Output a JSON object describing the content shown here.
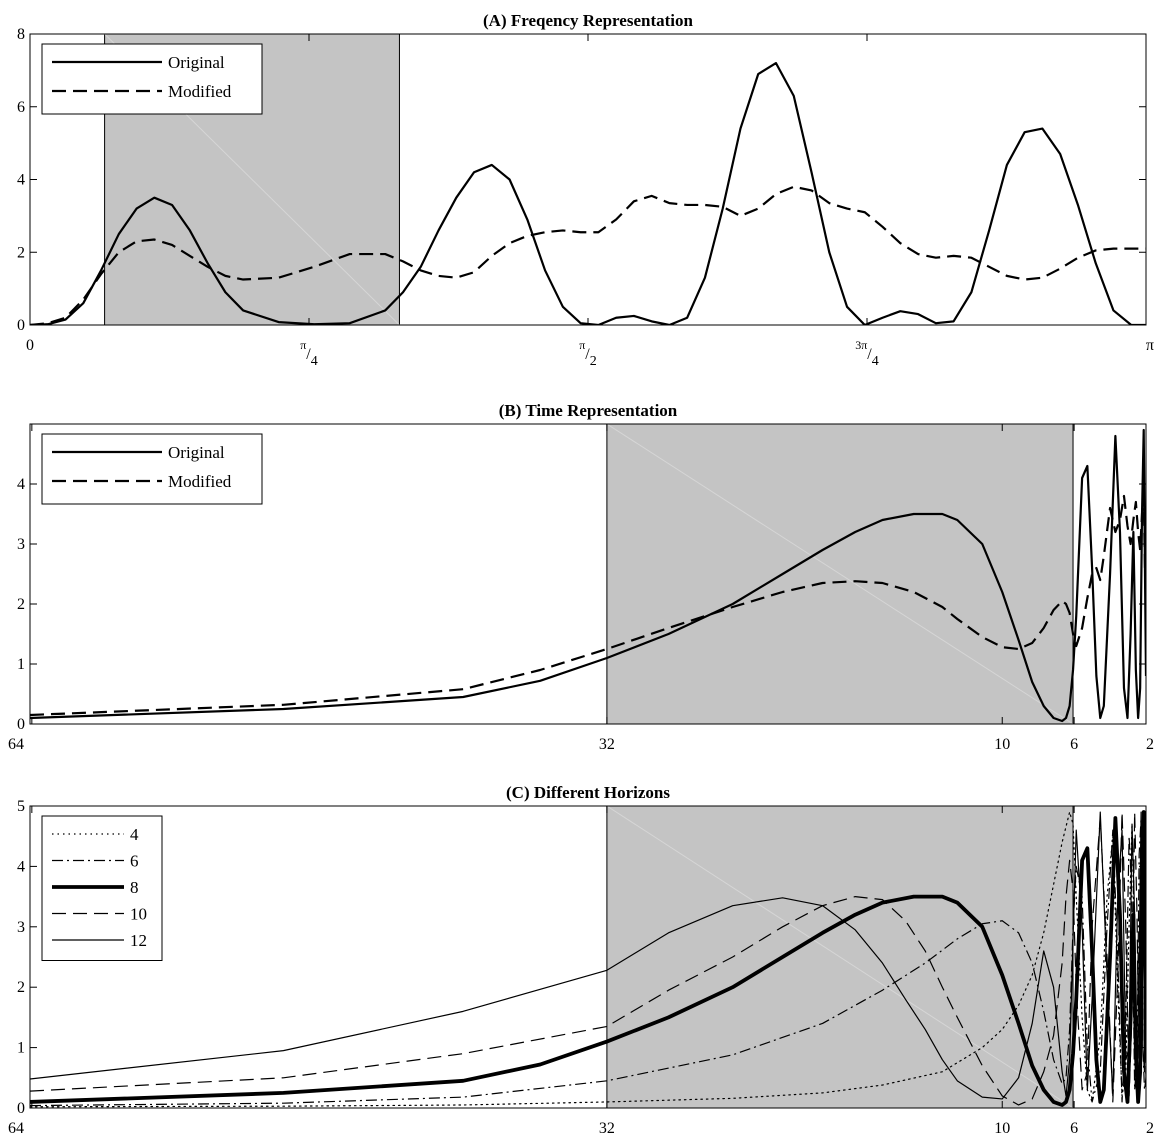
{
  "chart_data": [
    {
      "type": "line",
      "title": "(A) Freqency Representation",
      "xlim": [
        0,
        3.14159
      ],
      "ylim": [
        0,
        8
      ],
      "yticks": [
        "0",
        "2",
        "4",
        "6",
        "8"
      ],
      "xticks": [
        {
          "value": 0,
          "label": "0"
        },
        {
          "value": 0.7854,
          "num": "π",
          "den": "4"
        },
        {
          "value": 1.5708,
          "num": "π",
          "den": "2"
        },
        {
          "value": 2.3562,
          "num": "3π",
          "den": "4"
        },
        {
          "value": 3.14159,
          "label": "π"
        }
      ],
      "shaded": [
        0.21,
        1.04
      ],
      "legend": {
        "position": "top-left",
        "entries": [
          "Original",
          "Modified"
        ]
      },
      "series": [
        {
          "name": "Original",
          "style": "solid",
          "width": 2.2,
          "x": [
            0,
            0.05,
            0.1,
            0.15,
            0.2,
            0.25,
            0.3,
            0.35,
            0.4,
            0.45,
            0.5,
            0.55,
            0.6,
            0.7,
            0.8,
            0.9,
            1.0,
            1.05,
            1.1,
            1.15,
            1.2,
            1.25,
            1.3,
            1.35,
            1.4,
            1.45,
            1.5,
            1.55,
            1.6,
            1.65,
            1.7,
            1.75,
            1.8,
            1.85,
            1.9,
            1.95,
            2.0,
            2.05,
            2.1,
            2.15,
            2.2,
            2.25,
            2.3,
            2.35,
            2.4,
            2.45,
            2.5,
            2.55,
            2.6,
            2.65,
            2.7,
            2.75,
            2.8,
            2.85,
            2.9,
            2.95,
            3.0,
            3.05,
            3.1,
            3.14
          ],
          "y": [
            0,
            0.02,
            0.15,
            0.6,
            1.5,
            2.5,
            3.2,
            3.5,
            3.3,
            2.6,
            1.7,
            0.9,
            0.4,
            0.08,
            0.02,
            0.05,
            0.4,
            0.9,
            1.6,
            2.6,
            3.5,
            4.2,
            4.4,
            4.0,
            2.9,
            1.5,
            0.5,
            0.05,
            0,
            0.2,
            0.25,
            0.1,
            0,
            0.2,
            1.3,
            3.2,
            5.4,
            6.9,
            7.2,
            6.3,
            4.2,
            2.0,
            0.5,
            0,
            0.2,
            0.38,
            0.3,
            0.05,
            0.1,
            0.9,
            2.6,
            4.4,
            5.3,
            5.4,
            4.7,
            3.3,
            1.7,
            0.4,
            0,
            0
          ]
        },
        {
          "name": "Modified",
          "style": "dashed",
          "width": 2.2,
          "x": [
            0,
            0.05,
            0.1,
            0.15,
            0.2,
            0.25,
            0.3,
            0.35,
            0.4,
            0.45,
            0.5,
            0.55,
            0.6,
            0.7,
            0.8,
            0.9,
            1.0,
            1.05,
            1.1,
            1.15,
            1.2,
            1.25,
            1.3,
            1.35,
            1.4,
            1.45,
            1.5,
            1.55,
            1.6,
            1.65,
            1.7,
            1.75,
            1.8,
            1.85,
            1.9,
            1.95,
            2.0,
            2.05,
            2.1,
            2.15,
            2.2,
            2.25,
            2.3,
            2.35,
            2.4,
            2.45,
            2.5,
            2.55,
            2.6,
            2.65,
            2.7,
            2.75,
            2.8,
            2.85,
            2.9,
            2.95,
            3.0,
            3.05,
            3.1,
            3.14
          ],
          "y": [
            0,
            0.05,
            0.2,
            0.7,
            1.4,
            2.0,
            2.3,
            2.35,
            2.2,
            1.9,
            1.6,
            1.35,
            1.25,
            1.3,
            1.6,
            1.95,
            1.95,
            1.75,
            1.5,
            1.35,
            1.3,
            1.45,
            1.9,
            2.25,
            2.45,
            2.55,
            2.6,
            2.55,
            2.55,
            2.9,
            3.4,
            3.55,
            3.35,
            3.3,
            3.3,
            3.25,
            3.0,
            3.2,
            3.6,
            3.8,
            3.7,
            3.35,
            3.2,
            3.1,
            2.7,
            2.25,
            1.95,
            1.85,
            1.9,
            1.85,
            1.6,
            1.35,
            1.25,
            1.3,
            1.55,
            1.85,
            2.05,
            2.1,
            2.1,
            2.1
          ]
        }
      ]
    },
    {
      "type": "line",
      "title": "(B) Time Representation",
      "xlim": [
        0.0156,
        0.5
      ],
      "xscale": "reciprocal",
      "ylim": [
        0,
        5
      ],
      "yticks": [
        "0",
        "1",
        "2",
        "3",
        "4"
      ],
      "xticks": [
        {
          "value": 0.015625,
          "label": "64"
        },
        {
          "value": 0.03125,
          "label": "32"
        },
        {
          "value": 0.1,
          "label": "10"
        },
        {
          "value": 0.16667,
          "label": "6"
        },
        {
          "value": 0.5,
          "label": "2"
        }
      ],
      "shaded": [
        0.03125,
        0.165
      ],
      "legend": {
        "position": "top-left",
        "entries": [
          "Original",
          "Modified"
        ]
      },
      "series": [
        {
          "name": "Original",
          "style": "solid",
          "width": 2.2,
          "x": [
            0.0156,
            0.02,
            0.025,
            0.028,
            0.03125,
            0.035,
            0.04,
            0.045,
            0.05,
            0.055,
            0.06,
            0.067,
            0.075,
            0.08,
            0.09,
            0.1,
            0.11,
            0.12,
            0.13,
            0.14,
            0.15,
            0.155,
            0.16,
            0.165,
            0.17,
            0.18,
            0.19,
            0.2,
            0.21,
            0.22,
            0.23,
            0.25,
            0.27,
            0.29,
            0.31,
            0.33,
            0.35,
            0.37,
            0.39,
            0.41,
            0.43,
            0.45,
            0.47,
            0.49,
            0.5
          ],
          "y": [
            0.1,
            0.25,
            0.45,
            0.72,
            1.1,
            1.5,
            2.0,
            2.5,
            2.9,
            3.2,
            3.4,
            3.5,
            3.5,
            3.4,
            3.0,
            2.2,
            1.4,
            0.7,
            0.3,
            0.1,
            0.05,
            0.1,
            0.3,
            0.9,
            1.8,
            4.1,
            4.3,
            2.6,
            0.8,
            0.1,
            0.3,
            2.5,
            4.8,
            3.2,
            0.6,
            0.1,
            1.5,
            3.2,
            0.9,
            0.1,
            0.6,
            3.5,
            4.9,
            2.0,
            0.8
          ]
        },
        {
          "name": "Modified",
          "style": "dashed",
          "width": 2.2,
          "x": [
            0.0156,
            0.02,
            0.025,
            0.028,
            0.03125,
            0.035,
            0.04,
            0.045,
            0.05,
            0.055,
            0.06,
            0.067,
            0.075,
            0.08,
            0.09,
            0.1,
            0.11,
            0.12,
            0.13,
            0.14,
            0.15,
            0.155,
            0.16,
            0.165,
            0.17,
            0.18,
            0.19,
            0.2,
            0.21,
            0.22,
            0.23,
            0.25,
            0.27,
            0.29,
            0.31,
            0.33,
            0.35,
            0.37,
            0.39,
            0.41,
            0.43,
            0.45,
            0.47,
            0.49,
            0.5
          ],
          "y": [
            0.15,
            0.32,
            0.58,
            0.9,
            1.25,
            1.6,
            1.95,
            2.2,
            2.35,
            2.38,
            2.35,
            2.2,
            1.95,
            1.75,
            1.45,
            1.28,
            1.25,
            1.35,
            1.6,
            1.9,
            2.05,
            2.0,
            1.85,
            1.5,
            1.3,
            1.6,
            2.1,
            2.5,
            2.6,
            2.4,
            2.8,
            3.6,
            3.2,
            3.4,
            3.8,
            3.3,
            3.0,
            3.4,
            3.7,
            3.2,
            2.9,
            3.5,
            3.8,
            2.3,
            2.0
          ]
        }
      ]
    },
    {
      "type": "line",
      "title": "(C) Different Horizons",
      "xlim": [
        0.0156,
        0.5
      ],
      "xscale": "reciprocal",
      "ylim": [
        0,
        5
      ],
      "yticks": [
        "0",
        "1",
        "2",
        "3",
        "4",
        "5"
      ],
      "xticks": [
        {
          "value": 0.015625,
          "label": "64"
        },
        {
          "value": 0.03125,
          "label": "32"
        },
        {
          "value": 0.1,
          "label": "10"
        },
        {
          "value": 0.16667,
          "label": "6"
        },
        {
          "value": 0.5,
          "label": "2"
        }
      ],
      "shaded": [
        0.03125,
        0.165
      ],
      "legend": {
        "position": "top-left",
        "entries": [
          "4",
          "6",
          "8",
          "10",
          "12"
        ]
      },
      "series": [
        {
          "name": "4",
          "style": "dotted",
          "width": 1.2,
          "x": [
            0.0156,
            0.02,
            0.025,
            0.03125,
            0.04,
            0.05,
            0.06,
            0.075,
            0.09,
            0.1,
            0.11,
            0.12,
            0.13,
            0.14,
            0.15,
            0.16,
            0.165,
            0.17,
            0.18,
            0.19,
            0.2,
            0.22,
            0.24,
            0.26,
            0.28,
            0.3,
            0.32,
            0.34,
            0.36,
            0.38,
            0.4,
            0.42,
            0.44,
            0.46,
            0.48,
            0.5
          ],
          "y": [
            0.02,
            0.03,
            0.05,
            0.1,
            0.16,
            0.25,
            0.38,
            0.6,
            1.0,
            1.3,
            1.7,
            2.2,
            2.9,
            3.7,
            4.4,
            4.9,
            4.7,
            3.5,
            1.5,
            0.3,
            0.1,
            1.2,
            3.5,
            4.5,
            2.0,
            0.2,
            0.6,
            3.0,
            4.7,
            2.5,
            0.2,
            0.8,
            3.6,
            4.9,
            1.8,
            0.5
          ]
        },
        {
          "name": "6",
          "style": "dashdot",
          "width": 1.2,
          "x": [
            0.0156,
            0.02,
            0.025,
            0.03125,
            0.04,
            0.05,
            0.06,
            0.07,
            0.08,
            0.09,
            0.1,
            0.11,
            0.12,
            0.13,
            0.14,
            0.15,
            0.155,
            0.16,
            0.165,
            0.17,
            0.18,
            0.19,
            0.2,
            0.22,
            0.24,
            0.26,
            0.28,
            0.3,
            0.32,
            0.34,
            0.36,
            0.38,
            0.4,
            0.42,
            0.44,
            0.46,
            0.48,
            0.5
          ],
          "y": [
            0.04,
            0.08,
            0.18,
            0.45,
            0.88,
            1.4,
            1.95,
            2.4,
            2.8,
            3.05,
            3.1,
            2.9,
            2.4,
            1.6,
            0.8,
            0.4,
            0.5,
            1.3,
            3.0,
            4.0,
            3.5,
            1.0,
            0.1,
            0.6,
            3.0,
            4.6,
            2.5,
            0.1,
            1.5,
            4.5,
            3.5,
            0.3,
            0.8,
            4.2,
            4.8,
            1.0,
            0.3,
            0.5
          ]
        },
        {
          "name": "8",
          "style": "solid",
          "width": 3.8,
          "x": [
            0.0156,
            0.02,
            0.025,
            0.028,
            0.03125,
            0.035,
            0.04,
            0.045,
            0.05,
            0.055,
            0.06,
            0.067,
            0.075,
            0.08,
            0.09,
            0.1,
            0.11,
            0.12,
            0.13,
            0.14,
            0.15,
            0.155,
            0.16,
            0.165,
            0.17,
            0.18,
            0.19,
            0.2,
            0.21,
            0.22,
            0.23,
            0.25,
            0.27,
            0.29,
            0.31,
            0.33,
            0.35,
            0.37,
            0.39,
            0.41,
            0.43,
            0.45,
            0.47,
            0.49,
            0.5
          ],
          "y": [
            0.1,
            0.25,
            0.45,
            0.72,
            1.1,
            1.5,
            2.0,
            2.5,
            2.9,
            3.2,
            3.4,
            3.5,
            3.5,
            3.4,
            3.0,
            2.2,
            1.4,
            0.7,
            0.3,
            0.1,
            0.05,
            0.1,
            0.3,
            0.9,
            1.8,
            4.1,
            4.3,
            2.6,
            0.8,
            0.1,
            0.3,
            2.5,
            4.8,
            3.2,
            0.6,
            0.1,
            1.5,
            3.2,
            0.9,
            0.1,
            0.6,
            3.5,
            4.9,
            2.0,
            0.8
          ]
        },
        {
          "name": "10",
          "style": "dashed",
          "width": 1.2,
          "x": [
            0.0156,
            0.02,
            0.025,
            0.03125,
            0.035,
            0.04,
            0.045,
            0.05,
            0.055,
            0.06,
            0.065,
            0.07,
            0.075,
            0.08,
            0.09,
            0.1,
            0.11,
            0.12,
            0.13,
            0.14,
            0.15,
            0.155,
            0.16,
            0.165,
            0.17,
            0.18,
            0.19,
            0.2,
            0.22,
            0.24,
            0.26,
            0.28,
            0.3,
            0.32,
            0.34,
            0.36,
            0.38,
            0.4,
            0.42,
            0.44,
            0.46,
            0.48,
            0.5
          ],
          "y": [
            0.28,
            0.5,
            0.9,
            1.35,
            1.95,
            2.5,
            3.0,
            3.35,
            3.5,
            3.45,
            3.1,
            2.6,
            2.0,
            1.5,
            0.7,
            0.2,
            0.05,
            0.15,
            0.6,
            1.2,
            2.4,
            3.5,
            4.1,
            3.6,
            2.0,
            0.3,
            0.6,
            3.0,
            4.8,
            2.5,
            0.1,
            2.2,
            4.9,
            3.0,
            0.2,
            1.6,
            4.9,
            3.2,
            0.3,
            1.5,
            4.8,
            2.4,
            0.4
          ]
        },
        {
          "name": "12",
          "style": "solid",
          "width": 1.2,
          "x": [
            0.0156,
            0.02,
            0.025,
            0.03125,
            0.035,
            0.04,
            0.045,
            0.05,
            0.055,
            0.06,
            0.065,
            0.07,
            0.075,
            0.08,
            0.09,
            0.1,
            0.11,
            0.12,
            0.13,
            0.14,
            0.15,
            0.155,
            0.16,
            0.165,
            0.17,
            0.18,
            0.19,
            0.2,
            0.22,
            0.24,
            0.26,
            0.28,
            0.3,
            0.32,
            0.34,
            0.36,
            0.38,
            0.4,
            0.42,
            0.44,
            0.46,
            0.48,
            0.5
          ],
          "y": [
            0.48,
            0.95,
            1.6,
            2.28,
            2.9,
            3.35,
            3.48,
            3.35,
            2.95,
            2.4,
            1.8,
            1.3,
            0.8,
            0.45,
            0.18,
            0.15,
            0.5,
            1.4,
            2.6,
            2.0,
            0.6,
            0.2,
            0.8,
            2.8,
            4.6,
            3.0,
            0.3,
            1.8,
            4.9,
            2.2,
            0.2,
            3.5,
            4.6,
            0.8,
            1.0,
            4.7,
            3.2,
            0.2,
            2.5,
            4.9,
            1.0,
            0.6,
            2.0
          ]
        }
      ]
    }
  ]
}
